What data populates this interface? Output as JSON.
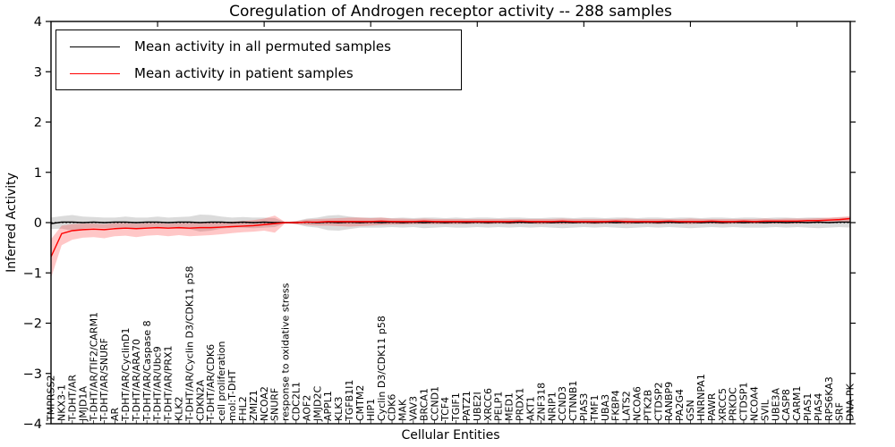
{
  "figure": {
    "title": "Coregulation of Androgen receptor activity -- 288 samples",
    "background": "#ffffff"
  },
  "legend": {
    "items": [
      {
        "label": "Mean activity in all permuted samples",
        "color": "#000000"
      },
      {
        "label": "Mean activity in patient samples",
        "color": "#ff0000"
      }
    ]
  },
  "chart_data": {
    "type": "line",
    "title": "Coregulation of Androgen receptor activity -- 288 samples",
    "xlabel": "Cellular Entities",
    "ylabel": "Inferred Activity",
    "ylim": [
      -4,
      4
    ],
    "yticks": [
      4,
      3,
      2,
      1,
      0,
      -1,
      -2,
      -3,
      -4
    ],
    "grid": false,
    "zero_line_style": "dotted",
    "legend_position": "upper left",
    "categories": [
      "TMPRSS2",
      "NKX3-1",
      "T-DHT/AR",
      "JMJD1A",
      "T-DHT/AR/TIF2/CARM1",
      "T-DHT/AR/SNURF",
      "AR",
      "T-DHT/AR/CyclinD1",
      "T-DHT/AR/ARA70",
      "T-DHT/AR/Caspase 8",
      "T-DHT/AR/Ubc9",
      "T-DHT/AR/PRX1",
      "KLK2",
      "T-DHT/AR/Cyclin D3/CDK11 p58",
      "CDKN2A",
      "T-DHT/AR/CDK6",
      "cell proliferation",
      "mol:T-DHT",
      "FHL2",
      "ZMIZ1",
      "NCOA2",
      "SNURF",
      "response to oxidative stress",
      "CDC2L1",
      "AOF2",
      "JMJD2C",
      "APPL1",
      "KLK3",
      "TGFB1I1",
      "CMTM2",
      "HIP1",
      "Cyclin D3/CDK11 p58",
      "CDK6",
      "MAK",
      "VAV3",
      "BRCA1",
      "CCND1",
      "TCF4",
      "TGIF1",
      "PATZ1",
      "UBE2I",
      "XRCC6",
      "PELP1",
      "MED1",
      "PRDX1",
      "AKT1",
      "ZNF318",
      "NRIP1",
      "CCND3",
      "CTNNB1",
      "PIAS3",
      "TMF1",
      "UBA3",
      "FKBP4",
      "LATS2",
      "NCOA6",
      "PTK2B",
      "CTDSP2",
      "RANBP9",
      "PA2G4",
      "GSN",
      "HNRNPA1",
      "PAWR",
      "XRCC5",
      "PRKDC",
      "CTDSP1",
      "NCOA4",
      "SVIL",
      "UBE3A",
      "CASP8",
      "CARM1",
      "PIAS1",
      "PIAS4",
      "RPS6KA3",
      "SRF",
      "DNA-PK"
    ],
    "series": [
      {
        "name": "Mean activity in all permuted samples",
        "color": "#000000",
        "band_color": "rgba(0,0,0,0.14)",
        "values": [
          -0.02,
          0.01,
          0.01,
          0.0,
          0.01,
          0.0,
          0.01,
          0.01,
          0.0,
          0.01,
          0.01,
          0.0,
          0.01,
          0.01,
          0.0,
          0.01,
          0.01,
          0.0,
          0.01,
          0.0,
          0.01,
          0.0,
          0.0,
          0.0,
          0.01,
          0.0,
          0.01,
          0.0,
          0.01,
          0.0,
          0.01,
          0.0,
          0.01,
          0.0,
          0.01,
          0.0,
          0.01,
          0.0,
          0.01,
          0.0,
          0.01,
          0.0,
          0.01,
          0.0,
          0.01,
          0.0,
          0.01,
          0.0,
          0.01,
          0.0,
          0.01,
          0.0,
          0.01,
          0.0,
          0.01,
          0.0,
          0.01,
          0.0,
          0.01,
          0.0,
          0.01,
          0.0,
          0.01,
          0.0,
          0.01,
          0.0,
          0.01,
          0.0,
          0.01,
          0.0,
          0.01,
          0.0,
          0.01,
          0.0,
          0.01,
          0.01
        ],
        "band": [
          [
            -0.13,
            0.1
          ],
          [
            -0.12,
            0.13
          ],
          [
            -0.16,
            0.15
          ],
          [
            -0.12,
            0.12
          ],
          [
            -0.1,
            0.11
          ],
          [
            -0.11,
            0.1
          ],
          [
            -0.1,
            0.1
          ],
          [
            -0.11,
            0.12
          ],
          [
            -0.13,
            0.1
          ],
          [
            -0.1,
            0.1
          ],
          [
            -0.1,
            0.12
          ],
          [
            -0.11,
            0.1
          ],
          [
            -0.12,
            0.11
          ],
          [
            -0.13,
            0.12
          ],
          [
            -0.18,
            0.16
          ],
          [
            -0.16,
            0.15
          ],
          [
            -0.12,
            0.12
          ],
          [
            -0.1,
            0.1
          ],
          [
            -0.1,
            0.11
          ],
          [
            -0.11,
            0.1
          ],
          [
            -0.1,
            0.1
          ],
          [
            -0.09,
            0.09
          ],
          [
            -0.01,
            0.01
          ],
          [
            -0.03,
            0.03
          ],
          [
            -0.08,
            0.08
          ],
          [
            -0.1,
            0.1
          ],
          [
            -0.15,
            0.14
          ],
          [
            -0.16,
            0.15
          ],
          [
            -0.13,
            0.12
          ],
          [
            -0.1,
            0.1
          ],
          [
            -0.1,
            0.1
          ],
          [
            -0.1,
            0.1
          ],
          [
            -0.09,
            0.09
          ],
          [
            -0.1,
            0.1
          ],
          [
            -0.09,
            0.09
          ],
          [
            -0.11,
            0.1
          ],
          [
            -0.1,
            0.1
          ],
          [
            -0.09,
            0.09
          ],
          [
            -0.1,
            0.1
          ],
          [
            -0.1,
            0.09
          ],
          [
            -0.09,
            0.1
          ],
          [
            -0.1,
            0.1
          ],
          [
            -0.09,
            0.09
          ],
          [
            -0.1,
            0.1
          ],
          [
            -0.09,
            0.1
          ],
          [
            -0.1,
            0.09
          ],
          [
            -0.09,
            0.09
          ],
          [
            -0.1,
            0.1
          ],
          [
            -0.11,
            0.1
          ],
          [
            -0.1,
            0.09
          ],
          [
            -0.09,
            0.1
          ],
          [
            -0.1,
            0.1
          ],
          [
            -0.09,
            0.09
          ],
          [
            -0.1,
            0.1
          ],
          [
            -0.11,
            0.1
          ],
          [
            -0.1,
            0.09
          ],
          [
            -0.09,
            0.1
          ],
          [
            -0.1,
            0.1
          ],
          [
            -0.09,
            0.09
          ],
          [
            -0.1,
            0.1
          ],
          [
            -0.11,
            0.1
          ],
          [
            -0.1,
            0.09
          ],
          [
            -0.09,
            0.1
          ],
          [
            -0.1,
            0.1
          ],
          [
            -0.09,
            0.09
          ],
          [
            -0.1,
            0.1
          ],
          [
            -0.1,
            0.1
          ],
          [
            -0.1,
            0.09
          ],
          [
            -0.09,
            0.1
          ],
          [
            -0.1,
            0.1
          ],
          [
            -0.09,
            0.09
          ],
          [
            -0.1,
            0.1
          ],
          [
            -0.11,
            0.1
          ],
          [
            -0.1,
            0.09
          ],
          [
            -0.09,
            0.1
          ],
          [
            -0.1,
            0.11
          ]
        ]
      },
      {
        "name": "Mean activity in patient samples",
        "color": "#ff0000",
        "band_color": "rgba(255,0,0,0.22)",
        "values": [
          -0.68,
          -0.22,
          -0.16,
          -0.14,
          -0.13,
          -0.14,
          -0.12,
          -0.11,
          -0.12,
          -0.11,
          -0.1,
          -0.11,
          -0.1,
          -0.11,
          -0.1,
          -0.1,
          -0.09,
          -0.08,
          -0.07,
          -0.06,
          -0.04,
          -0.02,
          0.0,
          0.0,
          0.01,
          0.01,
          0.02,
          0.02,
          0.02,
          0.02,
          0.02,
          0.03,
          0.02,
          0.02,
          0.02,
          0.03,
          0.02,
          0.02,
          0.02,
          0.02,
          0.02,
          0.02,
          0.02,
          0.02,
          0.03,
          0.02,
          0.02,
          0.02,
          0.03,
          0.02,
          0.02,
          0.02,
          0.02,
          0.03,
          0.02,
          0.02,
          0.02,
          0.02,
          0.03,
          0.02,
          0.02,
          0.02,
          0.03,
          0.02,
          0.02,
          0.03,
          0.02,
          0.03,
          0.03,
          0.03,
          0.03,
          0.04,
          0.04,
          0.05,
          0.06,
          0.08
        ],
        "band": [
          [
            -1.1,
            -0.33
          ],
          [
            -0.45,
            -0.06
          ],
          [
            -0.34,
            -0.03
          ],
          [
            -0.3,
            -0.02
          ],
          [
            -0.29,
            -0.02
          ],
          [
            -0.31,
            -0.03
          ],
          [
            -0.27,
            -0.01
          ],
          [
            -0.26,
            -0.01
          ],
          [
            -0.29,
            -0.02
          ],
          [
            -0.26,
            -0.01
          ],
          [
            -0.25,
            -0.01
          ],
          [
            -0.27,
            -0.02
          ],
          [
            -0.25,
            -0.01
          ],
          [
            -0.27,
            -0.01
          ],
          [
            -0.26,
            0.0
          ],
          [
            -0.25,
            0.0
          ],
          [
            -0.23,
            0.01
          ],
          [
            -0.21,
            0.02
          ],
          [
            -0.19,
            0.03
          ],
          [
            -0.18,
            0.05
          ],
          [
            -0.16,
            0.08
          ],
          [
            -0.2,
            0.14
          ],
          [
            -0.01,
            0.01
          ],
          [
            -0.03,
            0.03
          ],
          [
            -0.05,
            0.06
          ],
          [
            -0.06,
            0.07
          ],
          [
            -0.06,
            0.08
          ],
          [
            -0.07,
            0.09
          ],
          [
            -0.08,
            0.1
          ],
          [
            -0.07,
            0.1
          ],
          [
            -0.06,
            0.09
          ],
          [
            -0.05,
            0.1
          ],
          [
            -0.04,
            0.08
          ],
          [
            -0.04,
            0.08
          ],
          [
            -0.03,
            0.07
          ],
          [
            -0.03,
            0.08
          ],
          [
            -0.03,
            0.07
          ],
          [
            -0.03,
            0.07
          ],
          [
            -0.03,
            0.07
          ],
          [
            -0.03,
            0.07
          ],
          [
            -0.02,
            0.07
          ],
          [
            -0.03,
            0.07
          ],
          [
            -0.02,
            0.07
          ],
          [
            -0.03,
            0.07
          ],
          [
            -0.02,
            0.07
          ],
          [
            -0.02,
            0.07
          ],
          [
            -0.03,
            0.07
          ],
          [
            -0.02,
            0.07
          ],
          [
            -0.03,
            0.08
          ],
          [
            -0.02,
            0.07
          ],
          [
            -0.02,
            0.07
          ],
          [
            -0.03,
            0.07
          ],
          [
            -0.02,
            0.07
          ],
          [
            -0.02,
            0.07
          ],
          [
            -0.03,
            0.08
          ],
          [
            -0.02,
            0.07
          ],
          [
            -0.02,
            0.07
          ],
          [
            -0.03,
            0.07
          ],
          [
            -0.02,
            0.07
          ],
          [
            -0.02,
            0.07
          ],
          [
            -0.03,
            0.08
          ],
          [
            -0.02,
            0.07
          ],
          [
            -0.02,
            0.07
          ],
          [
            -0.03,
            0.07
          ],
          [
            -0.02,
            0.07
          ],
          [
            -0.02,
            0.07
          ],
          [
            -0.02,
            0.07
          ],
          [
            -0.02,
            0.08
          ],
          [
            -0.02,
            0.07
          ],
          [
            -0.02,
            0.08
          ],
          [
            -0.02,
            0.08
          ],
          [
            -0.01,
            0.08
          ],
          [
            -0.01,
            0.09
          ],
          [
            0.0,
            0.1
          ],
          [
            0.01,
            0.11
          ],
          [
            0.02,
            0.13
          ]
        ]
      }
    ]
  }
}
